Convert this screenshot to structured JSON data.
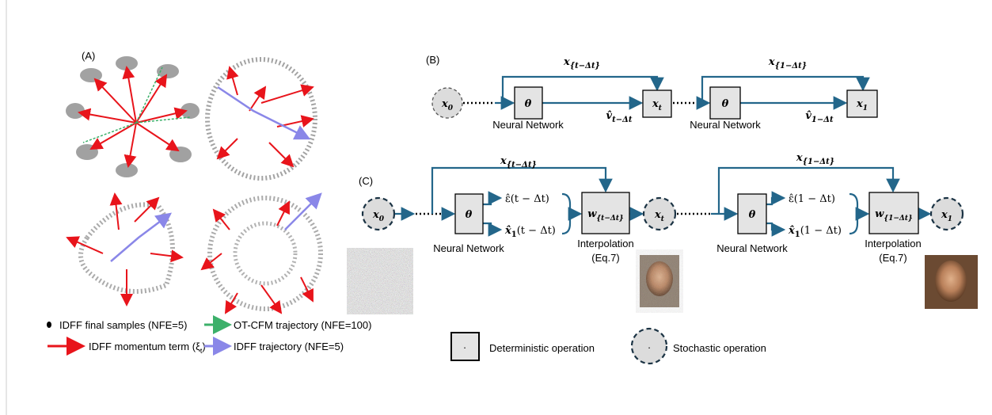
{
  "panel_a": {
    "label": "(A)",
    "legend": [
      {
        "text": "IDFF final samples (NFE=5)"
      },
      {
        "text": "OT-CFM trajectory (NFE=100)"
      },
      {
        "text": "IDFF momentum term (ξ",
        "sub": "t",
        "tail": ")"
      },
      {
        "text": "IDFF trajectory (NFE=5)"
      }
    ]
  },
  "panel_b": {
    "label": "(B)",
    "x0": {
      "base": "x",
      "sub": "0"
    },
    "skip1": {
      "base": "x",
      "sub": "{t−Δt}"
    },
    "theta1": "θ",
    "nn1": "Neural Network",
    "v1": {
      "base": "v̂",
      "sub": "t−Δt"
    },
    "xt": {
      "base": "x",
      "sub": "t"
    },
    "skip2": {
      "base": "x",
      "sub": "{1−Δt}"
    },
    "theta2": "θ",
    "nn2": "Neural Network",
    "v2": {
      "base": "v̂",
      "sub": "1−Δt"
    },
    "x1": {
      "base": "x",
      "sub": "1"
    }
  },
  "panel_c": {
    "label": "(C)",
    "x0": {
      "base": "x",
      "sub": "0"
    },
    "skip1": {
      "base": "x",
      "sub": "{t−Δt}"
    },
    "theta1": "θ",
    "eps1": "ε̂(t − Δt)",
    "xhat1": {
      "base": "x̂",
      "sub": "1",
      "tail": "(t − Δt)"
    },
    "w1": {
      "base": "w",
      "sub": "{t−Δt}"
    },
    "nn1": "Neural Network",
    "interp1": "Interpolation",
    "eq1": "(Eq.7)",
    "xt": {
      "base": "x",
      "sub": "t"
    },
    "skip2": {
      "base": "x",
      "sub": "{1−Δt}"
    },
    "theta2": "θ",
    "eps2": "ε̂(1 − Δt)",
    "xhat2": {
      "base": "x̂",
      "sub": "1",
      "tail": "(1 − Δt)"
    },
    "w2": {
      "base": "w",
      "sub": "{1−Δt}"
    },
    "nn2": "Neural Network",
    "interp2": "Interpolation",
    "eq2": "(Eq.7)",
    "x1": {
      "base": "x",
      "sub": "1"
    }
  },
  "key": {
    "det_symbol": ".",
    "det_text": "Deterministic operation",
    "sto_symbol": ".",
    "sto_text": "Stochastic operation"
  }
}
